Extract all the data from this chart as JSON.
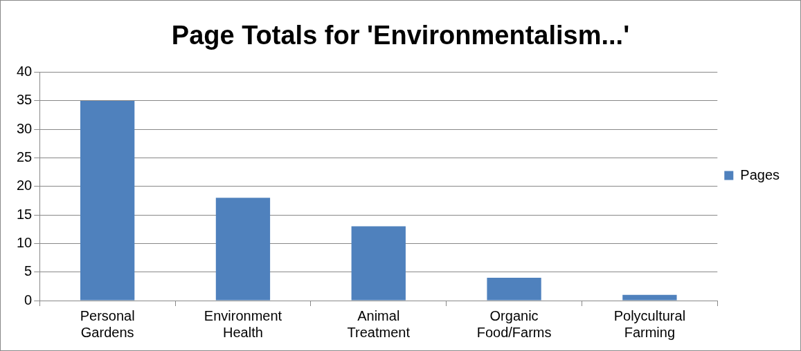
{
  "chart_data": {
    "type": "bar",
    "title": "Page Totals for 'Environmentalism...'",
    "categories": [
      "Personal Gardens",
      "Environment Health",
      "Animal Treatment",
      "Organic Food/Farms",
      "Polycultural Farming"
    ],
    "series": [
      {
        "name": "Pages",
        "color": "#4f81bd",
        "values": [
          35,
          18,
          13,
          4,
          1
        ]
      }
    ],
    "ylim": [
      0,
      40
    ],
    "yticks": [
      0,
      5,
      10,
      15,
      20,
      25,
      30,
      35,
      40
    ],
    "grid": "y",
    "legend": "right"
  }
}
